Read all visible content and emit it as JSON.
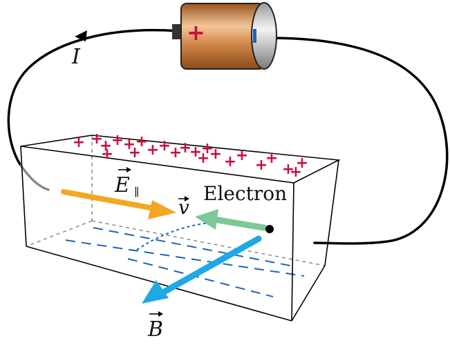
{
  "labels": {
    "current": "I",
    "electric_field": "E",
    "electric_field_subscript": "∥",
    "velocity": "v",
    "electron": "Electron",
    "magnetic_field": "B"
  },
  "battery": {
    "positive_symbol": "+",
    "negative_symbol": "−"
  },
  "charges": {
    "surface_symbol": "+",
    "count": 23
  },
  "colors": {
    "wire": "#000000",
    "positive_charge": "#c8103c",
    "battery_body": "#c8783c",
    "e_field_arrow": "#f5a623",
    "velocity_arrow": "#7cc897",
    "b_field_arrow": "#1fa8e6",
    "negative_charge_dash": "#1a64b4",
    "box_edge": "#000000",
    "hidden_edge": "#888888"
  }
}
